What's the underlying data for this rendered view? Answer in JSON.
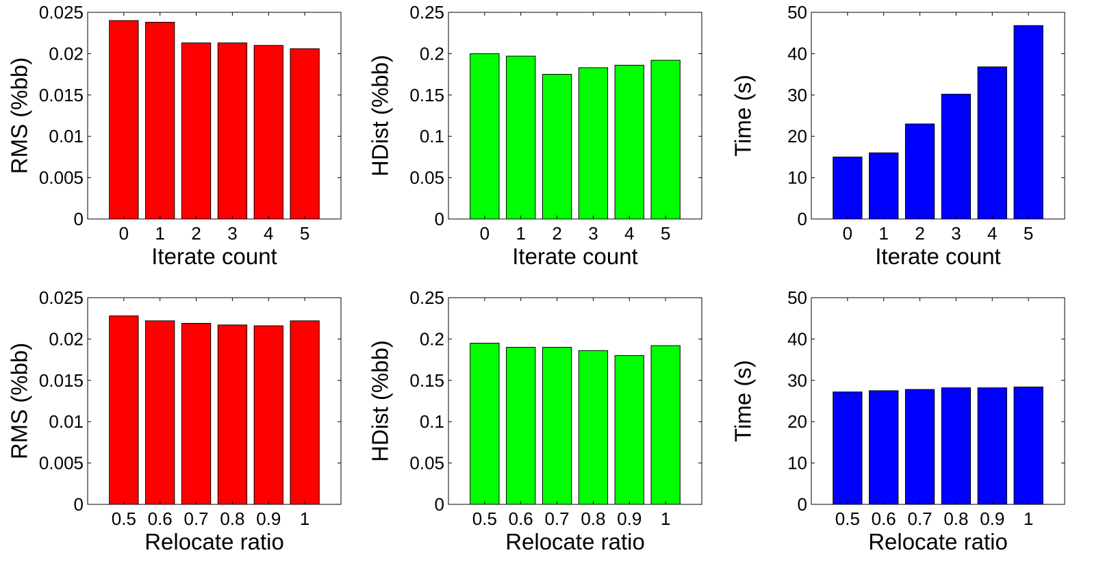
{
  "chart_data": [
    {
      "type": "bar",
      "categories": [
        "0",
        "1",
        "2",
        "3",
        "4",
        "5"
      ],
      "values": [
        0.024,
        0.0238,
        0.0213,
        0.0213,
        0.021,
        0.0206
      ],
      "xlabel": "Iterate count",
      "ylabel": "RMS (%bb)",
      "ylim": [
        0,
        0.025
      ],
      "yticks": [
        "0",
        "0.005",
        "0.01",
        "0.015",
        "0.02",
        "0.025"
      ],
      "color": "#ff0000"
    },
    {
      "type": "bar",
      "categories": [
        "0",
        "1",
        "2",
        "3",
        "4",
        "5"
      ],
      "values": [
        0.2,
        0.197,
        0.175,
        0.183,
        0.186,
        0.192
      ],
      "xlabel": "Iterate count",
      "ylabel": "HDist (%bb)",
      "ylim": [
        0,
        0.25
      ],
      "yticks": [
        "0",
        "0.05",
        "0.1",
        "0.15",
        "0.2",
        "0.25"
      ],
      "color": "#00ff00"
    },
    {
      "type": "bar",
      "categories": [
        "0",
        "1",
        "2",
        "3",
        "4",
        "5"
      ],
      "values": [
        15,
        16,
        23,
        30.2,
        36.8,
        46.8
      ],
      "xlabel": "Iterate count",
      "ylabel": "Time (s)",
      "ylim": [
        0,
        50
      ],
      "yticks": [
        "0",
        "10",
        "20",
        "30",
        "40",
        "50"
      ],
      "color": "#0000ff"
    },
    {
      "type": "bar",
      "categories": [
        "0.5",
        "0.6",
        "0.7",
        "0.8",
        "0.9",
        "1"
      ],
      "values": [
        0.0228,
        0.0222,
        0.0219,
        0.0217,
        0.0216,
        0.0222
      ],
      "xlabel": "Relocate ratio",
      "ylabel": "RMS (%bb)",
      "ylim": [
        0,
        0.025
      ],
      "yticks": [
        "0",
        "0.005",
        "0.01",
        "0.015",
        "0.02",
        "0.025"
      ],
      "color": "#ff0000"
    },
    {
      "type": "bar",
      "categories": [
        "0.5",
        "0.6",
        "0.7",
        "0.8",
        "0.9",
        "1"
      ],
      "values": [
        0.195,
        0.19,
        0.19,
        0.186,
        0.18,
        0.192
      ],
      "xlabel": "Relocate ratio",
      "ylabel": "HDist (%bb)",
      "ylim": [
        0,
        0.25
      ],
      "yticks": [
        "0",
        "0.05",
        "0.1",
        "0.15",
        "0.2",
        "0.25"
      ],
      "color": "#00ff00"
    },
    {
      "type": "bar",
      "categories": [
        "0.5",
        "0.6",
        "0.7",
        "0.8",
        "0.9",
        "1"
      ],
      "values": [
        27.2,
        27.5,
        27.8,
        28.2,
        28.2,
        28.4
      ],
      "xlabel": "Relocate ratio",
      "ylabel": "Time (s)",
      "ylim": [
        0,
        50
      ],
      "yticks": [
        "0",
        "10",
        "20",
        "30",
        "40",
        "50"
      ],
      "color": "#0000ff"
    }
  ]
}
